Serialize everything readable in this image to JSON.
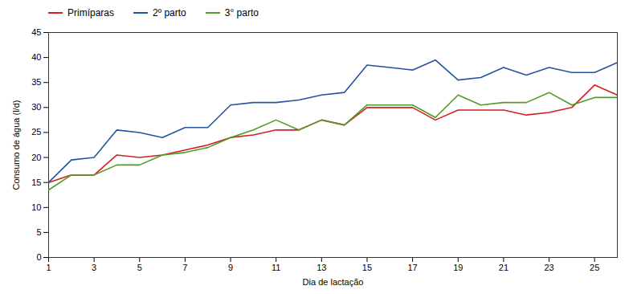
{
  "chart_data": {
    "type": "line",
    "xlabel": "Dia de lactação",
    "ylabel": "Consumo de água (l/d)",
    "x": [
      1,
      2,
      3,
      4,
      5,
      6,
      7,
      8,
      9,
      10,
      11,
      12,
      13,
      14,
      15,
      16,
      17,
      18,
      19,
      20,
      21,
      22,
      23,
      24,
      25,
      26
    ],
    "series": [
      {
        "name": "Primíparas",
        "color": "#d42020",
        "values": [
          15.0,
          16.5,
          16.5,
          20.5,
          20.0,
          20.5,
          21.5,
          22.5,
          24.0,
          24.5,
          25.5,
          25.5,
          27.5,
          26.5,
          30.0,
          30.0,
          30.0,
          27.5,
          29.5,
          29.5,
          29.5,
          28.5,
          29.0,
          30.0,
          34.5,
          32.5
        ]
      },
      {
        "name": "2º parto",
        "color": "#2653a0",
        "values": [
          15.0,
          19.5,
          20.0,
          25.5,
          25.0,
          24.0,
          26.0,
          26.0,
          30.5,
          31.0,
          31.0,
          31.5,
          32.5,
          33.0,
          38.5,
          38.0,
          37.5,
          39.5,
          35.5,
          36.0,
          38.0,
          36.5,
          38.0,
          37.0,
          37.0,
          39.0
        ]
      },
      {
        "name": "3° parto",
        "color": "#4f9a28",
        "values": [
          13.5,
          16.5,
          16.5,
          18.5,
          18.5,
          20.5,
          21.0,
          22.0,
          24.0,
          25.5,
          27.5,
          25.5,
          27.5,
          26.5,
          30.5,
          30.5,
          30.5,
          28.0,
          32.5,
          30.5,
          31.0,
          31.0,
          33.0,
          30.5,
          32.0,
          32.0
        ]
      }
    ],
    "xlim": [
      1,
      26
    ],
    "ylim": [
      0,
      45
    ],
    "xticks": [
      1,
      3,
      5,
      7,
      9,
      11,
      13,
      15,
      17,
      19,
      21,
      23,
      25
    ],
    "yticks": [
      0,
      5,
      10,
      15,
      20,
      25,
      30,
      35,
      40,
      45
    ],
    "legend": "top",
    "grid": false
  }
}
